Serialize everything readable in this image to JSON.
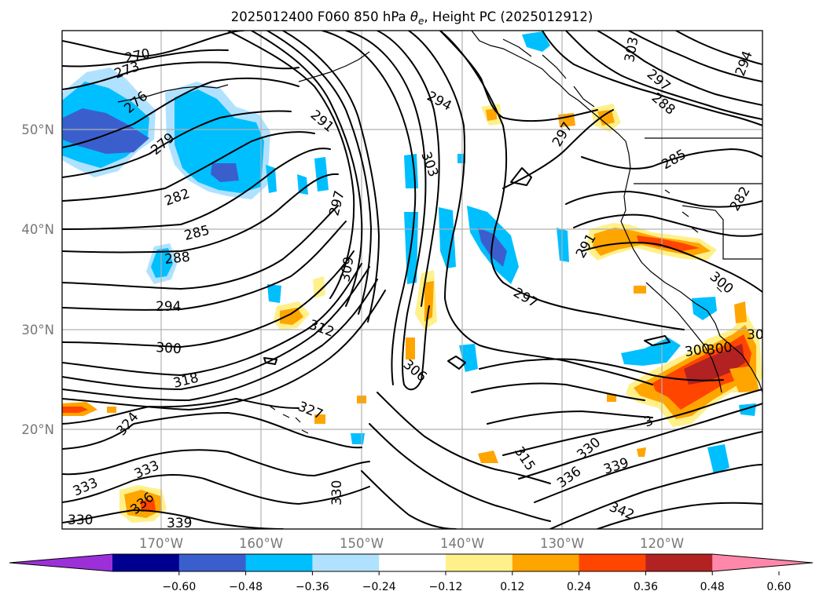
{
  "title_prefix": "2025012400 F060 850 hPa ",
  "title_theta": "θ",
  "title_sub": "e",
  "title_suffix": ", Height PC (2025012912)",
  "lat_labels": [
    "50°N",
    "40°N",
    "30°N",
    "20°N"
  ],
  "lon_labels": [
    "170°W",
    "160°W",
    "150°W",
    "140°W",
    "130°W",
    "120°W"
  ],
  "colorbar": {
    "ticks": [
      "−0.60",
      "−0.48",
      "−0.36",
      "−0.24",
      "−0.12",
      "0.12",
      "0.24",
      "0.36",
      "0.48",
      "0.60"
    ],
    "colors": [
      "#9b30d9",
      "#000090",
      "#3a5fcd",
      "#00bfff",
      "#b0e2ff",
      "#ffffff",
      "#fff08a",
      "#ffa500",
      "#ff4500",
      "#b22222",
      "#ff88aa"
    ]
  },
  "contour_labels": [
    "270",
    "273",
    "276",
    "279",
    "282",
    "285",
    "288",
    "291",
    "294",
    "297",
    "300",
    "303",
    "306",
    "309",
    "312",
    "315",
    "318",
    "324",
    "327",
    "330",
    "333",
    "336",
    "339",
    "342"
  ],
  "contour_label_list": [
    "270",
    "273",
    "276",
    "279",
    "282",
    "285",
    "288",
    "294",
    "300",
    "318",
    "324",
    "327",
    "333",
    "333",
    "336",
    "330",
    "339",
    "330",
    "291",
    "297",
    "309",
    "312",
    "303",
    "306",
    "294",
    "297",
    "315",
    "336",
    "339",
    "342",
    "330",
    "291",
    "297",
    "300",
    "303",
    "297",
    "288",
    "294",
    "285",
    "282",
    "300",
    "300",
    "30",
    "3"
  ]
}
